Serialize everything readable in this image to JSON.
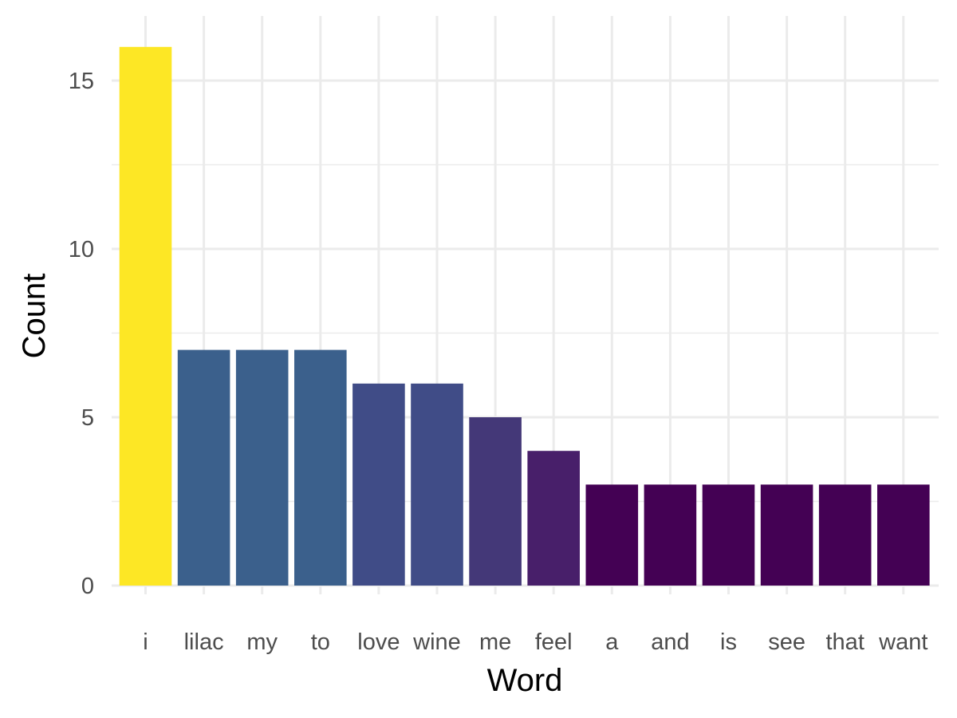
{
  "chart_data": {
    "type": "bar",
    "xlabel": "Word",
    "ylabel": "Count",
    "categories": [
      "i",
      "lilac",
      "my",
      "to",
      "love",
      "wine",
      "me",
      "feel",
      "a",
      "and",
      "is",
      "see",
      "that",
      "want"
    ],
    "values": [
      16,
      7,
      7,
      7,
      6,
      6,
      5,
      4,
      3,
      3,
      3,
      3,
      3,
      3
    ],
    "ylim": [
      0,
      16.8
    ],
    "yticks": [
      0,
      5,
      10,
      15
    ],
    "grid": true,
    "legend": "none",
    "colors": [
      "#FDE725",
      "#3B608C",
      "#3B608C",
      "#3B608C",
      "#404C87",
      "#404C87",
      "#443878",
      "#481F6A",
      "#440154",
      "#440154",
      "#440154",
      "#440154",
      "#440154",
      "#440154"
    ]
  }
}
